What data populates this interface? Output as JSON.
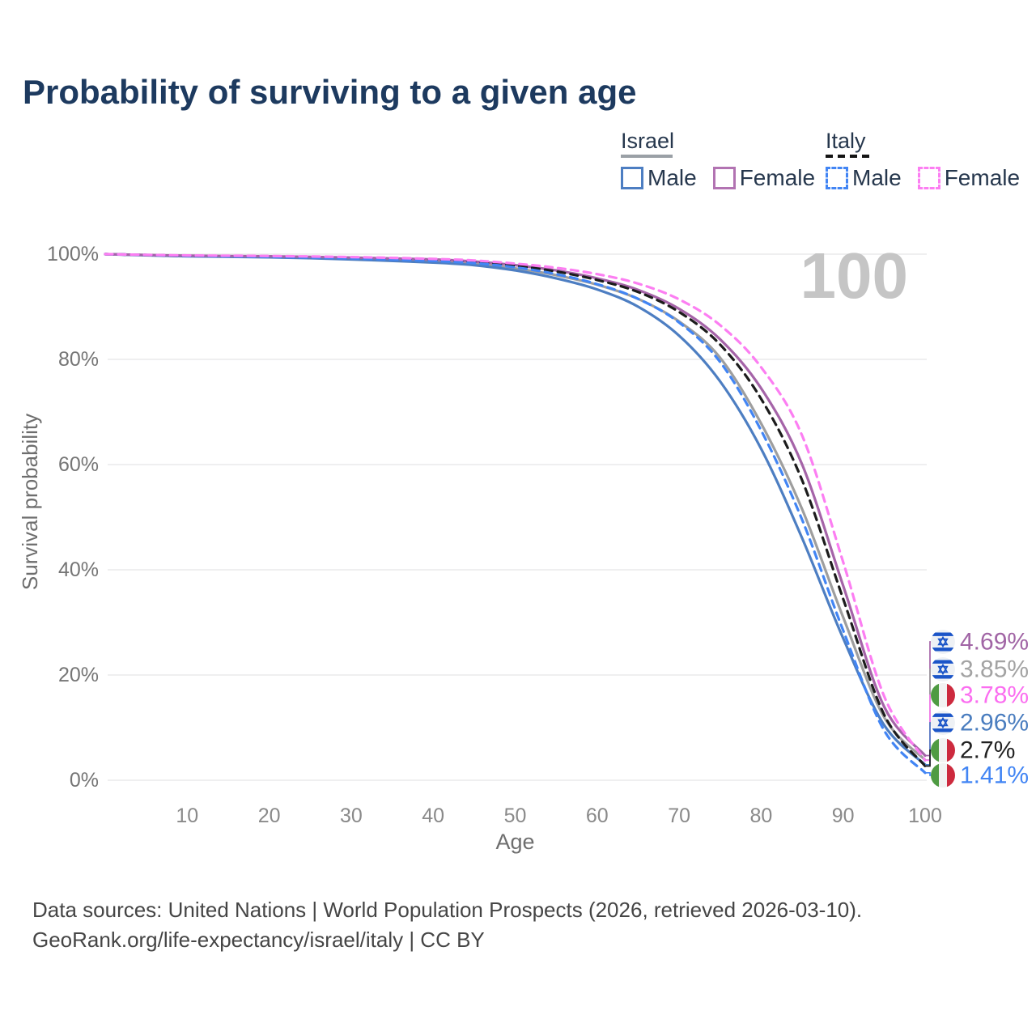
{
  "title": "Probability of surviving to a given age",
  "watermark": "100",
  "legend": {
    "groups": [
      {
        "id": "israel",
        "label": "Israel",
        "underline_style": "solid",
        "underline_color": "#9aa0a6",
        "items": [
          {
            "label": "Male",
            "color": "#4d7ec2",
            "dashed": false,
            "series": "israel_male"
          },
          {
            "label": "Female",
            "color": "#b273b2",
            "dashed": false,
            "series": "israel_female"
          }
        ]
      },
      {
        "id": "italy",
        "label": "Italy",
        "underline_style": "dashed",
        "underline_color": "#141414",
        "items": [
          {
            "label": "Male",
            "color": "#4285f4",
            "dashed": true,
            "series": "italy_male"
          },
          {
            "label": "Female",
            "color": "#fc7ef2",
            "dashed": true,
            "series": "italy_female"
          }
        ]
      }
    ]
  },
  "chart_data": {
    "type": "line",
    "title": "Probability of surviving to a given age",
    "xlabel": "Age",
    "ylabel": "Survival probability",
    "xlim": [
      0,
      100
    ],
    "ylim": [
      0,
      100
    ],
    "grid": "horizontal",
    "x_ticks": [
      {
        "value": 10,
        "label": "10"
      },
      {
        "value": 20,
        "label": "20"
      },
      {
        "value": 30,
        "label": "30"
      },
      {
        "value": 40,
        "label": "40"
      },
      {
        "value": 50,
        "label": "50"
      },
      {
        "value": 60,
        "label": "60"
      },
      {
        "value": 70,
        "label": "70"
      },
      {
        "value": 80,
        "label": "80"
      },
      {
        "value": 90,
        "label": "90"
      },
      {
        "value": 100,
        "label": "100"
      }
    ],
    "y_ticks": [
      {
        "value": 100,
        "label": "100%"
      },
      {
        "value": 80,
        "label": "80%"
      },
      {
        "value": 60,
        "label": "60%"
      },
      {
        "value": 40,
        "label": "40%"
      },
      {
        "value": 20,
        "label": "20%"
      },
      {
        "value": 0,
        "label": "0%"
      }
    ],
    "ages": [
      0,
      10,
      20,
      30,
      40,
      45,
      50,
      55,
      60,
      65,
      70,
      75,
      80,
      85,
      90,
      95,
      100
    ],
    "series": [
      {
        "id": "israel_male",
        "name": "Israel Male",
        "color": "#4d7ec2",
        "dashed": false,
        "values": [
          100,
          99.6,
          99.4,
          99.0,
          98.4,
          97.9,
          96.9,
          95.4,
          93.3,
          90.0,
          84.5,
          75.8,
          63.0,
          46.0,
          27.0,
          10.5,
          2.96
        ],
        "end_label": "2.96%",
        "end_label_color": "#4a7dbf",
        "flag": "israel"
      },
      {
        "id": "israel_female",
        "name": "Israel Female",
        "color": "#a564a8",
        "dashed": false,
        "values": [
          100,
          99.7,
          99.6,
          99.35,
          99.0,
          98.6,
          97.9,
          96.9,
          95.4,
          93.2,
          89.6,
          83.8,
          74.5,
          60.0,
          37.0,
          14.0,
          4.69
        ],
        "end_label": "4.69%",
        "end_label_color": "#a165a5",
        "flag": "israel"
      },
      {
        "id": "israel_total",
        "name": "Israel",
        "color": "#9e9e9e",
        "dashed": false,
        "values": [
          100,
          99.65,
          99.45,
          99.1,
          98.6,
          98.2,
          97.3,
          96.0,
          94.2,
          91.5,
          87.2,
          80.3,
          67.8,
          51.5,
          31.0,
          12.0,
          3.85
        ],
        "end_label": "3.85%",
        "end_label_color": "#a3a3a3",
        "flag": "israel"
      },
      {
        "id": "italy_total",
        "name": "Italy",
        "color": "#1c1c1c",
        "dashed": true,
        "values": [
          100,
          99.7,
          99.55,
          99.3,
          98.9,
          98.5,
          97.8,
          96.7,
          95.1,
          92.8,
          89.0,
          82.8,
          72.5,
          57.0,
          34.5,
          12.5,
          2.7
        ],
        "end_label": "2.7%",
        "end_label_color": "#212121",
        "flag": "italy"
      },
      {
        "id": "italy_male",
        "name": "Italy Male",
        "color": "#4285f4",
        "dashed": true,
        "values": [
          100,
          99.7,
          99.5,
          99.2,
          98.7,
          98.3,
          97.5,
          96.2,
          94.3,
          91.5,
          87.0,
          79.5,
          66.5,
          49.5,
          28.5,
          9.5,
          1.41
        ],
        "end_label": "1.41%",
        "end_label_color": "#4285f4",
        "flag": "italy"
      },
      {
        "id": "italy_female",
        "name": "Italy Female",
        "color": "#fc7ef2",
        "dashed": true,
        "values": [
          100,
          99.75,
          99.65,
          99.45,
          99.1,
          98.8,
          98.2,
          97.4,
          96.2,
          94.4,
          91.4,
          86.5,
          78.5,
          65.5,
          41.5,
          16.0,
          3.78
        ],
        "end_label": "3.78%",
        "end_label_color": "#fb6ef0",
        "flag": "italy"
      }
    ],
    "annotation": {
      "age_counter": "100"
    }
  },
  "flags": {
    "israel": {
      "bg": "#eef1f5",
      "band": "#1b55c8"
    },
    "italy": {
      "green": "#4f9b43",
      "white": "#f2f2f2",
      "red": "#cd2a3e"
    }
  },
  "footer": {
    "line1": "Data sources: United Nations | World Population Prospects (2026, retrieved 2026-03-10).",
    "line2": "GeoRank.org/life-expectancy/israel/italy | CC BY"
  },
  "colors": {
    "title": "#1d3a5f",
    "legend_text": "#26374d",
    "grid": "#eaeaec",
    "axis_tick_text": "#8a8a8a",
    "y_tick_text": "#757575",
    "axis_title_text": "#6e6e6e",
    "watermark": "#c5c5c5",
    "footer_text": "#454545"
  }
}
